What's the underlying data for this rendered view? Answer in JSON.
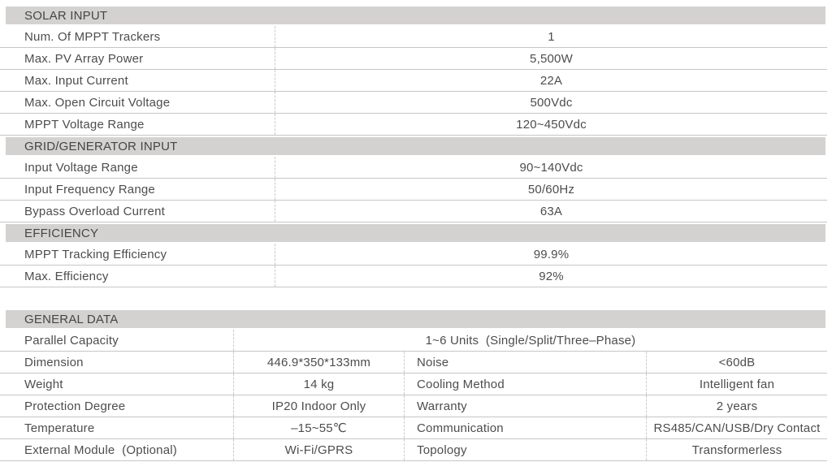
{
  "colors": {
    "header_bg": "#d4d2d1",
    "text": "#4d4d4d",
    "rule": "#c6c6c6",
    "dashed_rule": "#cbcbcb"
  },
  "solar_input": {
    "header": "SOLAR INPUT",
    "rows": [
      {
        "label": "Num. Of MPPT Trackers",
        "value": "1"
      },
      {
        "label": "Max. PV Array Power",
        "value": "5,500W"
      },
      {
        "label": "Max. Input Current",
        "value": "22A"
      },
      {
        "label": "Max. Open Circuit Voltage",
        "value": "500Vdc"
      },
      {
        "label": "MPPT Voltage Range",
        "value": "120~450Vdc"
      }
    ]
  },
  "grid_generator_input": {
    "header": "GRID/GENERATOR INPUT",
    "rows": [
      {
        "label": "Input Voltage Range",
        "value": "90~140Vdc"
      },
      {
        "label": "Input Frequency Range",
        "value": "50/60Hz"
      },
      {
        "label": "Bypass Overload Current",
        "value": "63A"
      }
    ]
  },
  "efficiency": {
    "header": "EFFICIENCY",
    "rows": [
      {
        "label": "MPPT Tracking Efficiency",
        "value": "99.9%"
      },
      {
        "label": "Max. Efficiency",
        "value": "92%"
      }
    ]
  },
  "general_data": {
    "header": "GENERAL DATA",
    "parallel_row": {
      "label": "Parallel Capacity",
      "value": "1~6 Units  (Single/Split/Three–Phase)"
    },
    "rows": [
      {
        "label1": "Dimension",
        "value1": "446.9*350*133mm",
        "label2": "Noise",
        "value2": "<60dB"
      },
      {
        "label1": "Weight",
        "value1": "14 kg",
        "label2": "Cooling Method",
        "value2": "Intelligent fan"
      },
      {
        "label1": "Protection Degree",
        "value1": "IP20 Indoor Only",
        "label2": "Warranty",
        "value2": "2 years"
      },
      {
        "label1": "Temperature",
        "value1": "–15~55℃",
        "label2": "Communication",
        "value2": "RS485/CAN/USB/Dry Contact"
      },
      {
        "label1": "External Module  (Optional)",
        "value1": "Wi-Fi/GPRS",
        "label2": "Topology",
        "value2": "Transformerless"
      }
    ]
  }
}
